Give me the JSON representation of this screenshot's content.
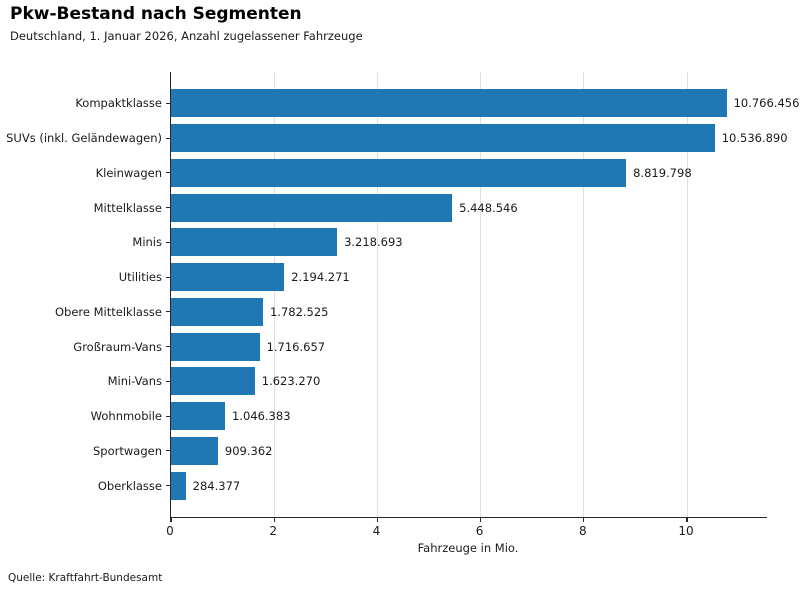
{
  "chart_data": {
    "type": "bar",
    "orientation": "horizontal",
    "title": "Pkw-Bestand nach Segmenten",
    "subtitle": "Deutschland, 1. Januar 2026, Anzahl zugelassener Fahrzeuge",
    "xlabel": "Fahrzeuge in Mio.",
    "source": "Quelle: Kraftfahrt-Bundesamt",
    "bar_color": "#1f77b4",
    "grid_color": "#e0e0e0",
    "xlim": [
      0,
      11.55
    ],
    "xticks": [
      0,
      2,
      4,
      6,
      8,
      10
    ],
    "xtick_labels": [
      "0",
      "2",
      "4",
      "6",
      "8",
      "10"
    ],
    "unit": "Mio.",
    "categories": [
      "Kompaktklasse",
      "SUVs (inkl. Geländewagen)",
      "Kleinwagen",
      "Mittelklasse",
      "Minis",
      "Utilities",
      "Obere Mittelklasse",
      "Großraum-Vans",
      "Mini-Vans",
      "Wohnmobile",
      "Sportwagen",
      "Oberklasse"
    ],
    "values": [
      10766456,
      10536890,
      8819798,
      5448546,
      3218693,
      2194271,
      1782525,
      1716657,
      1623270,
      1046383,
      909362,
      284377
    ],
    "value_labels": [
      "10.766.456",
      "10.536.890",
      "8.819.798",
      "5.448.546",
      "3.218.693",
      "2.194.271",
      "1.782.525",
      "1.716.657",
      "1.623.270",
      "1.046.383",
      "909.362",
      "284.377"
    ]
  }
}
